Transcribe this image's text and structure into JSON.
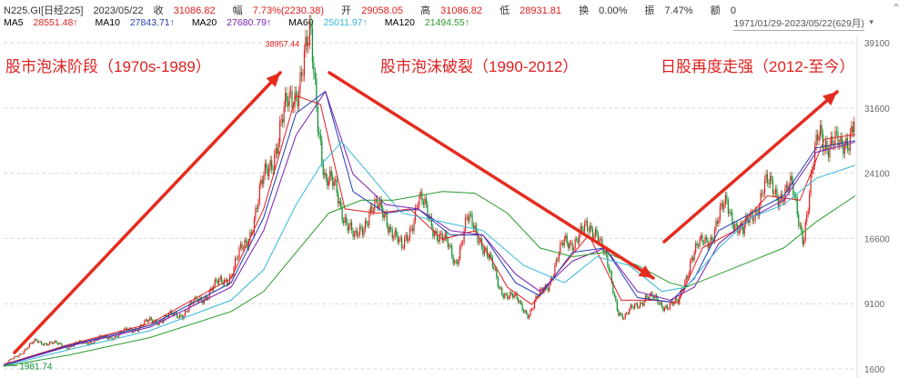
{
  "header": {
    "symbol": "N225.GI[日经225]",
    "date": "2023/05/22",
    "close_label": "收",
    "close_value": "31086.82",
    "change_label": "幅",
    "change_value": "7.73%(2230.38)",
    "open_label": "开",
    "open_value": "29058.05",
    "high_label": "高",
    "high_value": "31086.82",
    "low_label": "低",
    "low_value": "28931.81",
    "turnover_label": "换",
    "turnover_value": "0.00%",
    "amplitude_label": "振",
    "amplitude_value": "7.47%",
    "amount_label": "额",
    "amount_value": "0",
    "range": "1971/01/29-2023/05/22(629月)"
  },
  "ma_legend": [
    {
      "label": "MA5",
      "value": "28551.48↑",
      "color": "#e02020"
    },
    {
      "label": "MA10",
      "value": "27843.71↑",
      "color": "#1f3fb0"
    },
    {
      "label": "MA20",
      "value": "27680.79↑",
      "color": "#7a1fb0"
    },
    {
      "label": "MA60",
      "value": "25011.97↑",
      "color": "#35b8d8"
    },
    {
      "label": "MA120",
      "value": "21494.55↑",
      "color": "#2a9a2a"
    }
  ],
  "colors": {
    "up": "#e02020",
    "down": "#0a8f2a",
    "arrow": "#e52b1e",
    "annotation": "#e02020",
    "grid": "#d9d9d9"
  },
  "chart_data": {
    "type": "line",
    "title": "",
    "xlabel": "",
    "ylabel": "",
    "x_range": [
      "1971/01/29",
      "2023/05/22"
    ],
    "ylim": [
      1600,
      39100
    ],
    "y_ticks": [
      1600,
      9100,
      16600,
      24100,
      31600,
      39100
    ],
    "grid": true,
    "marked_high": {
      "date": "1989/12",
      "value": 38957.44,
      "label": "38957.44"
    },
    "marked_low": {
      "date": "1971/01",
      "value": 1981.74,
      "label": "1981.74"
    },
    "annotations": [
      {
        "text": "股市泡沫阶段（1970s-1989）",
        "start": "1971",
        "end": "1989",
        "direction": "up"
      },
      {
        "text": "股市泡沫破裂（1990-2012）",
        "start": "1990",
        "end": "2012",
        "direction": "down"
      },
      {
        "text": "日股再度走强（2012-至今）",
        "start": "2012",
        "end": "2023",
        "direction": "up"
      }
    ],
    "series": [
      {
        "name": "N225.GI",
        "x": [
          1971,
          1973,
          1975,
          1978,
          1980,
          1982,
          1984,
          1985,
          1986,
          1987,
          1988,
          1989.9,
          1990.8,
          1991.5,
          1992.6,
          1993.5,
          1994.5,
          1995.5,
          1996.5,
          1997.5,
          1998.8,
          1999.5,
          2000.3,
          2001.5,
          2002.5,
          2003.3,
          2004.5,
          2005.5,
          2006.5,
          2007.5,
          2008.8,
          2009.2,
          2010.5,
          2011.5,
          2012.5,
          2013.3,
          2014.5,
          2015.5,
          2016.5,
          2017.8,
          2018.5,
          2019.5,
          2020.2,
          2021.2,
          2022.5,
          2023.4
        ],
        "values": [
          1982,
          4800,
          4200,
          5500,
          7000,
          8000,
          11000,
          12600,
          16500,
          23000,
          29000,
          38957,
          23000,
          22000,
          16000,
          20000,
          19500,
          15000,
          21000,
          18000,
          14000,
          18500,
          17000,
          11000,
          9500,
          8000,
          11500,
          16000,
          17000,
          18000,
          8500,
          7500,
          10000,
          9000,
          9000,
          14500,
          17000,
          20500,
          17000,
          22500,
          22000,
          22000,
          17000,
          29000,
          26500,
          31087
        ]
      },
      {
        "name": "MA5",
        "x": [
          1971,
          1975,
          1980,
          1985,
          1987,
          1989,
          1990.5,
          1992,
          1994,
          1996,
          1998,
          2000,
          2002,
          2003.5,
          2005,
          2007,
          2009,
          2011,
          2012.5,
          2014,
          2016,
          2018,
          2020,
          2021.5,
          2023.4
        ],
        "values": [
          2100,
          4400,
          6800,
          12000,
          20000,
          33000,
          32000,
          20000,
          19500,
          20000,
          16500,
          17500,
          11000,
          9000,
          12500,
          17000,
          9500,
          9500,
          9200,
          15500,
          17500,
          21500,
          21000,
          28000,
          28551
        ]
      },
      {
        "name": "MA10",
        "x": [
          1971,
          1975,
          1980,
          1985,
          1987,
          1989,
          1990.8,
          1992.5,
          1994.5,
          1996.5,
          1998.5,
          2000.5,
          2002.5,
          2004,
          2006,
          2008,
          2010,
          2012,
          2013.5,
          2015,
          2017,
          2019,
          2021,
          2023.4
        ],
        "values": [
          2050,
          4300,
          6600,
          11500,
          19000,
          31000,
          33500,
          22000,
          19500,
          20000,
          17000,
          17000,
          11500,
          10000,
          15000,
          15500,
          9800,
          9300,
          12000,
          17500,
          19500,
          21500,
          27000,
          27844
        ]
      },
      {
        "name": "MA20",
        "x": [
          1971,
          1975,
          1980,
          1985,
          1987,
          1989,
          1990.8,
          1992.5,
          1994.5,
          1996.5,
          1998.5,
          2000.5,
          2002.5,
          2004,
          2006,
          2008,
          2010,
          2012,
          2013.5,
          2015,
          2017,
          2019,
          2021,
          2023.4
        ],
        "values": [
          2000,
          4200,
          6400,
          11000,
          17500,
          28500,
          33500,
          24000,
          20500,
          20000,
          17500,
          17000,
          12500,
          10500,
          14000,
          15500,
          10500,
          9500,
          11000,
          16000,
          19000,
          21000,
          26500,
          27681
        ]
      },
      {
        "name": "MA60",
        "x": [
          1971,
          1975,
          1980,
          1985,
          1987,
          1989,
          1990.5,
          1991.8,
          1993.5,
          1995.5,
          1998,
          2000.5,
          2003,
          2005.5,
          2007.5,
          2009.5,
          2011.5,
          2013,
          2015,
          2017,
          2019,
          2021,
          2023.4
        ],
        "values": [
          1950,
          3800,
          6000,
          9500,
          13000,
          20500,
          25000,
          27700,
          24000,
          19500,
          18500,
          17500,
          13500,
          11500,
          14500,
          13500,
          10500,
          11000,
          15500,
          19000,
          20500,
          23500,
          25012
        ]
      },
      {
        "name": "MA120",
        "x": [
          1971,
          1975,
          1980,
          1985,
          1987,
          1989,
          1991,
          1993,
          1995,
          1998,
          2000,
          2002,
          2004,
          2006,
          2008,
          2010,
          2012,
          2013,
          2015,
          2017,
          2019,
          2021,
          2023.4
        ],
        "values": [
          1900,
          3200,
          5200,
          8200,
          10500,
          15000,
          19500,
          21000,
          21000,
          22000,
          21800,
          19500,
          15500,
          14500,
          15000,
          13500,
          11500,
          11000,
          12500,
          14000,
          15500,
          18500,
          21495
        ]
      }
    ]
  }
}
